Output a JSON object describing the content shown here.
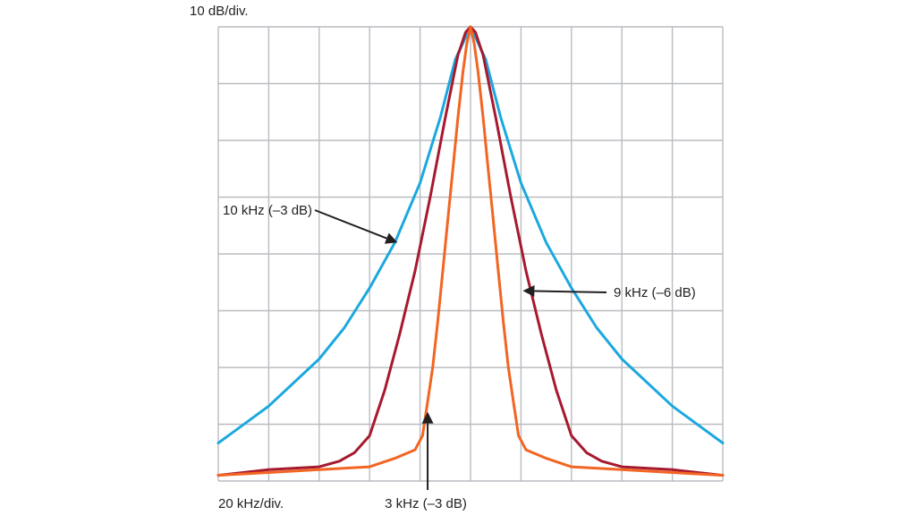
{
  "chart_data": {
    "type": "line",
    "title": "",
    "y_scale_label": "10 dB/div.",
    "x_scale_label": "20 kHz/div.",
    "x_unit": "kHz",
    "y_unit": "dB",
    "xlim": [
      -100,
      100
    ],
    "ylim": [
      -80,
      0
    ],
    "grid": true,
    "grid_divisions": {
      "x": 10,
      "y": 8
    },
    "colors": {
      "grid": "#b9bcc0",
      "arrow": "#231f20"
    },
    "series": [
      {
        "name": "10 kHz (–3 dB)",
        "color": "#1ba8df",
        "x": [
          -100,
          -80,
          -60,
          -50,
          -40,
          -30,
          -20,
          -12,
          -6,
          0,
          6,
          12,
          20,
          30,
          40,
          50,
          60,
          80,
          100
        ],
        "y": [
          -73.3,
          -66.8,
          -58.5,
          -53,
          -46,
          -38,
          -27.5,
          -16,
          -5.7,
          0,
          -5.7,
          -16,
          -27.5,
          -38,
          -46,
          -53,
          -58.5,
          -66.8,
          -73.3
        ]
      },
      {
        "name": "9 kHz (–6 dB)",
        "color": "#a6192e",
        "x": [
          -100,
          -80,
          -60,
          -52,
          -46,
          -40,
          -34,
          -28,
          -22,
          -16,
          -10,
          -5,
          -2,
          0,
          2,
          5,
          10,
          16,
          22,
          28,
          34,
          40,
          46,
          52,
          60,
          80,
          100
        ],
        "y": [
          -79,
          -78,
          -77.5,
          -76.5,
          -75,
          -72,
          -64,
          -54,
          -43,
          -30,
          -16,
          -5,
          -1,
          0,
          -1,
          -5,
          -16,
          -30,
          -43,
          -54,
          -64,
          -72,
          -75,
          -76.5,
          -77.5,
          -78,
          -79
        ]
      },
      {
        "name": "3 kHz (–3 dB)",
        "color": "#f26522",
        "x": [
          -100,
          -80,
          -60,
          -40,
          -30,
          -22,
          -19,
          -18,
          -17,
          -15,
          -13,
          -11,
          -9,
          -7,
          -5,
          -3,
          -1.5,
          0,
          1.5,
          3,
          5,
          7,
          9,
          11,
          13,
          15,
          17,
          18,
          19,
          22,
          30,
          40,
          60,
          80,
          100
        ],
        "y": [
          -79,
          -78.5,
          -78,
          -77.5,
          -76,
          -74.5,
          -72,
          -69,
          -66,
          -60,
          -52,
          -43,
          -34,
          -25,
          -16,
          -8,
          -3,
          0,
          -3,
          -8,
          -16,
          -25,
          -34,
          -43,
          -52,
          -60,
          -66,
          -69,
          -72,
          -74.5,
          -76,
          -77.5,
          -78,
          -78.5,
          -79
        ]
      }
    ],
    "annotations": [
      {
        "text": "10 kHz (–3 dB)",
        "series": 0,
        "target_x": -30,
        "target_y": -38
      },
      {
        "text": "9 kHz (–6 dB)",
        "series": 1,
        "target_x": 20,
        "target_y": -46.5
      },
      {
        "text": "3 kHz (–3 dB)",
        "series": 2,
        "target_x": -17,
        "target_y": -67.5
      }
    ]
  }
}
